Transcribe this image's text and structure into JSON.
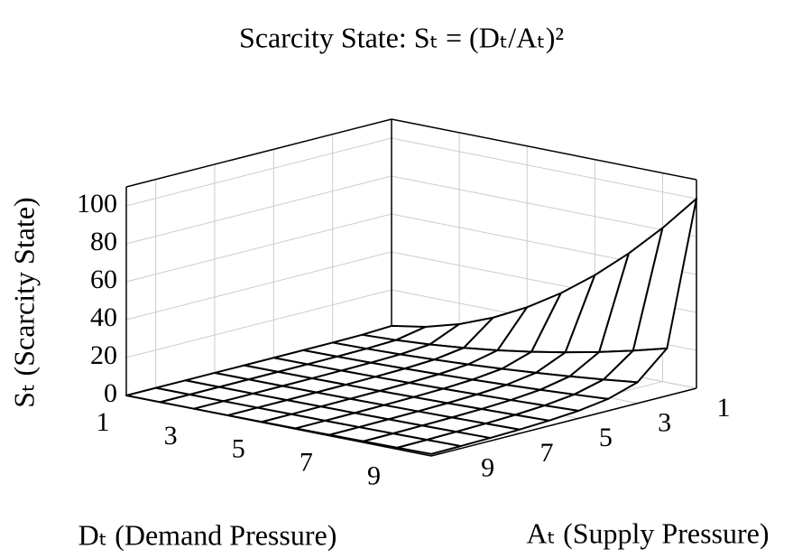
{
  "chart_data": {
    "type": "surface",
    "title": "Scarcity State: Sₜ = (Dₜ/Aₜ)²",
    "xlabel": "Dₜ (Demand Pressure)",
    "ylabel": "Aₜ (Supply Pressure)",
    "zlabel": "Sₜ (Scarcity State)",
    "x": [
      1,
      2,
      3,
      4,
      5,
      6,
      7,
      8,
      9,
      10
    ],
    "y": [
      1,
      2,
      3,
      4,
      5,
      6,
      7,
      8,
      9,
      10
    ],
    "z": [
      [
        1,
        4,
        9,
        16,
        25,
        36,
        49,
        64,
        81,
        100
      ],
      [
        0.25,
        1,
        2.25,
        4,
        6.25,
        9,
        12.25,
        16,
        20.25,
        25
      ],
      [
        0.11,
        0.44,
        1,
        1.78,
        2.78,
        4,
        5.44,
        7.11,
        9,
        11.11
      ],
      [
        0.06,
        0.25,
        0.56,
        1,
        1.56,
        2.25,
        3.06,
        4,
        5.06,
        6.25
      ],
      [
        0.04,
        0.16,
        0.36,
        0.64,
        1,
        1.44,
        1.96,
        2.56,
        3.24,
        4
      ],
      [
        0.03,
        0.11,
        0.25,
        0.44,
        0.69,
        1,
        1.36,
        1.78,
        2.25,
        2.78
      ],
      [
        0.02,
        0.08,
        0.18,
        0.33,
        0.51,
        0.73,
        1,
        1.31,
        1.65,
        2.04
      ],
      [
        0.02,
        0.06,
        0.14,
        0.25,
        0.39,
        0.56,
        0.77,
        1,
        1.27,
        1.56
      ],
      [
        0.01,
        0.05,
        0.11,
        0.2,
        0.31,
        0.44,
        0.6,
        0.79,
        1,
        1.23
      ],
      [
        0.01,
        0.04,
        0.09,
        0.16,
        0.25,
        0.36,
        0.49,
        0.64,
        0.81,
        1
      ]
    ],
    "xlim": [
      1,
      10
    ],
    "ylim": [
      1,
      10
    ],
    "zlim": [
      0,
      110
    ],
    "xticks": [
      1,
      3,
      5,
      7,
      9
    ],
    "yticks": [
      1,
      3,
      5,
      7,
      9
    ],
    "zticks": [
      0,
      20,
      40,
      60,
      80,
      100
    ],
    "grid": true,
    "color": "#ffffff",
    "edgecolor": "#000000"
  }
}
